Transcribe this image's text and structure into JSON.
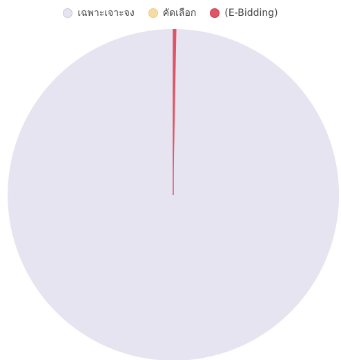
{
  "chart_data": {
    "type": "pie",
    "title": "",
    "legend_position": "top",
    "categories": [
      "เฉพาะเจาะจง",
      "คัดเลือก",
      "(E-Bidding)"
    ],
    "values": [
      99.7,
      0,
      0.3
    ],
    "colors": [
      "#e6e4f0",
      "#f5dca6",
      "#e05565"
    ],
    "swatch_border_colors": [
      "#c9c7d4",
      "#f0c978",
      "#c83a4a"
    ]
  }
}
